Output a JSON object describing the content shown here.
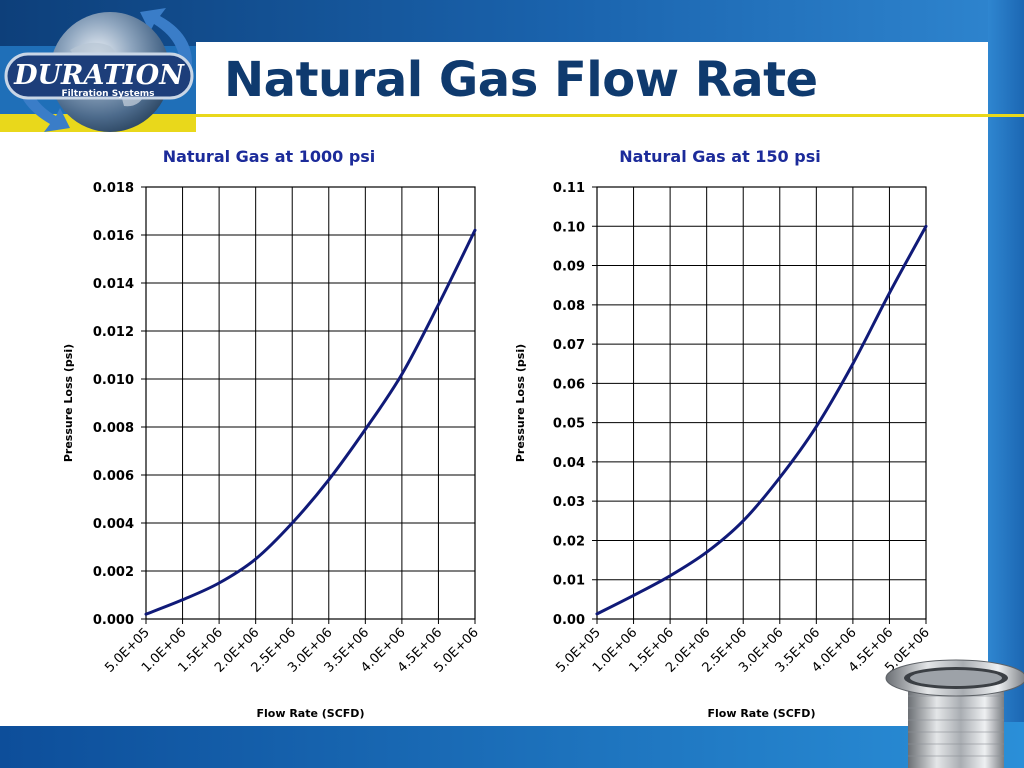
{
  "slide": {
    "title": "Natural Gas Flow Rate",
    "logo_text": "DURATION",
    "logo_subtext": "Filtration Systems",
    "colors": {
      "title": "#0f3a6e",
      "accent_line": "#e9d81b",
      "series_line": "#101a78",
      "chart_title": "#1c2b9a"
    }
  },
  "chart_data": [
    {
      "type": "line",
      "title": "Natural Gas at 1000 psi",
      "xlabel": "Flow Rate (SCFD)",
      "ylabel": "Pressure Loss (psi)",
      "x_tick_labels": [
        "5.0E+05",
        "1.0E+06",
        "1.5E+06",
        "2.0E+06",
        "2.5E+06",
        "3.0E+06",
        "3.5E+06",
        "4.0E+06",
        "4.5E+06",
        "5.0E+06"
      ],
      "y_tick_labels": [
        "0.000",
        "0.002",
        "0.004",
        "0.006",
        "0.008",
        "0.010",
        "0.012",
        "0.014",
        "0.016",
        "0.018"
      ],
      "xlim": [
        500000,
        5000000
      ],
      "ylim": [
        0,
        0.018
      ],
      "x_grid_step": 500000,
      "y_grid_step": 0.002,
      "grid": true,
      "series": [
        {
          "x": [
            500000,
            1000000,
            1500000,
            2000000,
            2500000,
            3000000,
            3500000,
            4000000,
            4500000,
            5000000
          ],
          "values": [
            0.0002,
            0.0008,
            0.0015,
            0.0025,
            0.004,
            0.0058,
            0.0079,
            0.0102,
            0.0131,
            0.0162
          ]
        }
      ]
    },
    {
      "type": "line",
      "title": "Natural Gas at 150 psi",
      "xlabel": "Flow Rate (SCFD)",
      "ylabel": "Pressure Loss (psi)",
      "x_tick_labels": [
        "5.0E+05",
        "1.0E+06",
        "1.5E+06",
        "2.0E+06",
        "2.5E+06",
        "3.0E+06",
        "3.5E+06",
        "4.0E+06",
        "4.5E+06",
        "5.0E+06"
      ],
      "y_tick_labels": [
        "0.00",
        "0.01",
        "0.02",
        "0.03",
        "0.04",
        "0.05",
        "0.06",
        "0.07",
        "0.08",
        "0.09",
        "0.10",
        "0.11"
      ],
      "xlim": [
        500000,
        5000000
      ],
      "ylim": [
        0,
        0.11
      ],
      "x_grid_step": 500000,
      "y_grid_step": 0.01,
      "grid": true,
      "series": [
        {
          "x": [
            500000,
            1000000,
            1500000,
            2000000,
            2500000,
            3000000,
            3500000,
            4000000,
            4500000,
            5000000
          ],
          "values": [
            0.0013,
            0.006,
            0.011,
            0.017,
            0.025,
            0.036,
            0.049,
            0.065,
            0.083,
            0.1
          ]
        }
      ]
    }
  ]
}
